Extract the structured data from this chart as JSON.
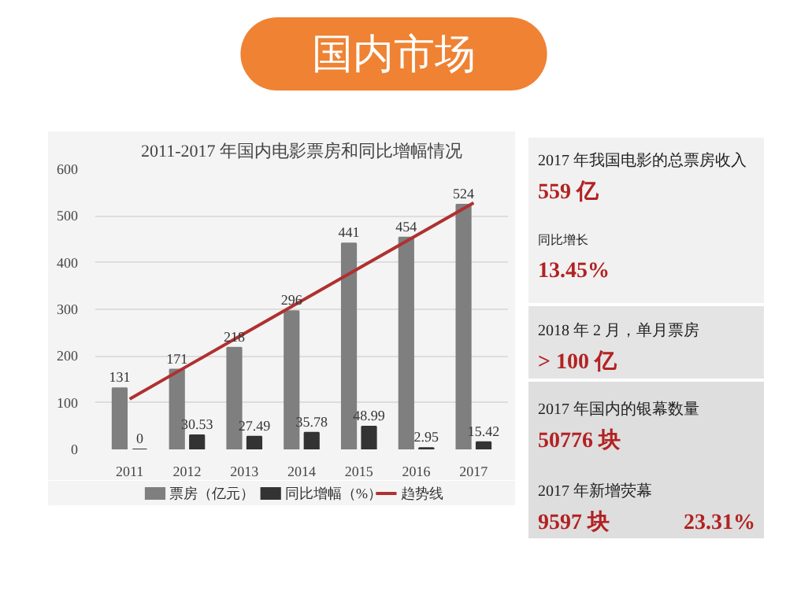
{
  "chart_data": [
    {
      "type": "other",
      "title": "国内市场",
      "color": "#ef8233"
    },
    {
      "type": "bar",
      "title": "2011-2017 年国内电影票房和同比增幅情况",
      "categories": [
        "2011",
        "2012",
        "2013",
        "2014",
        "2015",
        "2016",
        "2017"
      ],
      "series": [
        {
          "name": "票房（亿元）",
          "color": "#7f7f7f",
          "values": [
            131,
            171,
            218,
            296,
            441,
            454,
            524
          ],
          "value_labels": [
            "131",
            "171",
            "218",
            "296",
            "441",
            "454",
            "524"
          ]
        },
        {
          "name": "同比增幅（%）",
          "color": "#333333",
          "values": [
            0,
            30.53,
            27.49,
            35.78,
            48.99,
            2.95,
            15.42
          ],
          "value_labels": [
            "0",
            "30.53",
            "27.49",
            "35.78",
            "48.99",
            "2.95",
            "15.42"
          ]
        },
        {
          "name": "趋势线",
          "type": "line",
          "color": "#b03030",
          "values": [
            108,
            178,
            248,
            318,
            388,
            458,
            528
          ]
        }
      ],
      "ylim": [
        0,
        600
      ],
      "yticks": [
        0,
        100,
        200,
        300,
        400,
        500,
        600
      ],
      "grid": "y",
      "legend": "bottom"
    },
    {
      "type": "other",
      "annotations": [
        "2017 年我国电影的总票房收入",
        "559 亿",
        "同比增长",
        "13.45%",
        "2018 年 2 月，单月票房",
        "> 100 亿",
        "2017 年国内的银幕数量",
        "50776 块",
        "2017 年新增荧幕",
        "9597 块",
        "23.31%"
      ]
    }
  ]
}
